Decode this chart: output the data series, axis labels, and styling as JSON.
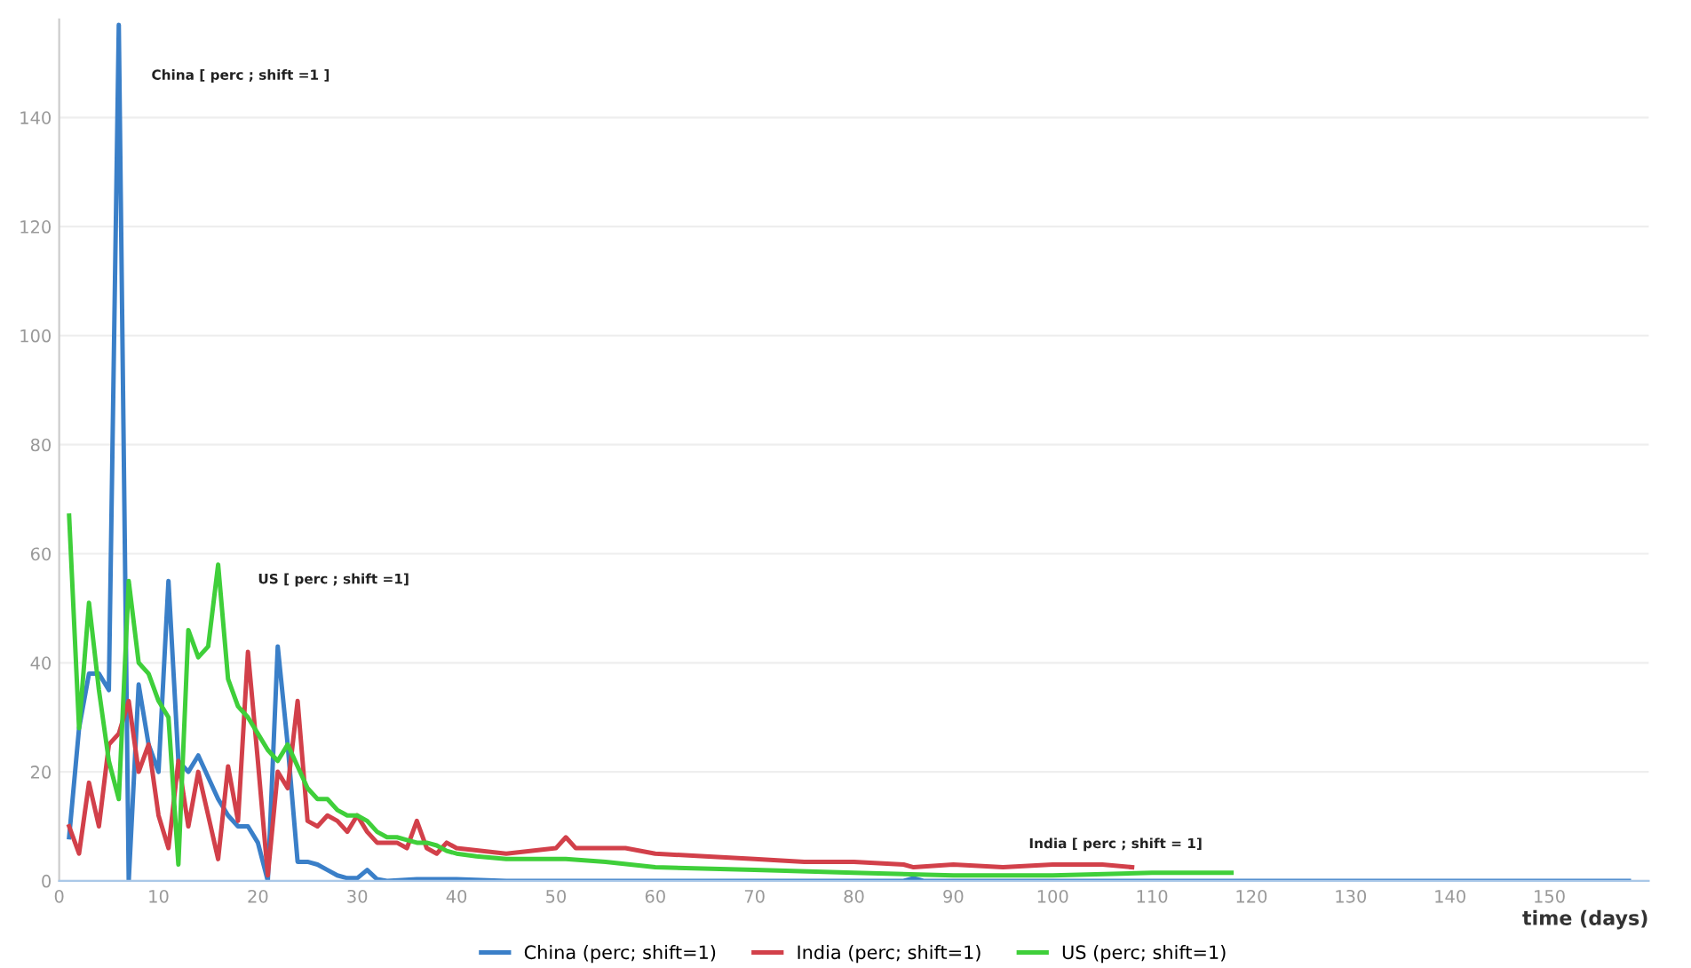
{
  "chart_data": {
    "type": "line",
    "xlabel": "time (days)",
    "xlim": [
      0,
      160
    ],
    "ylim": [
      0,
      158
    ],
    "xticks": [
      0,
      10,
      20,
      30,
      40,
      50,
      60,
      70,
      80,
      90,
      100,
      110,
      120,
      130,
      140,
      150
    ],
    "yticks": [
      0,
      20,
      40,
      60,
      80,
      100,
      120,
      140
    ],
    "grid": "y",
    "legend": "bottom",
    "marker": "none",
    "line_style": "solid",
    "annotations": [
      "China [ perc ; shift =1 ]",
      "US [ perc ; shift =1]",
      "India [ perc ; shift = 1]"
    ],
    "series": [
      {
        "name": "China (perc; shift=1)",
        "color": "#3a7fc8",
        "x": [
          1,
          2,
          3,
          4,
          5,
          6,
          7,
          8,
          9,
          10,
          11,
          12,
          13,
          14,
          15,
          16,
          17,
          18,
          19,
          20,
          21,
          22,
          23,
          24,
          25,
          26,
          27,
          28,
          29,
          30,
          31,
          32,
          33,
          36,
          40,
          45,
          60,
          85,
          86,
          87,
          100,
          158
        ],
        "values": [
          8,
          28,
          38,
          38,
          35,
          157,
          0,
          36,
          25,
          20,
          55,
          22,
          20,
          23,
          19,
          15,
          12,
          10,
          10,
          7,
          0,
          43,
          25,
          3.5,
          3.5,
          3,
          2,
          1,
          0.5,
          0.5,
          2,
          0.3,
          0,
          0.3,
          0.3,
          0,
          0,
          0,
          0.5,
          0,
          0,
          0
        ]
      },
      {
        "name": "India (perc; shift=1)",
        "color": "#d2404a",
        "x": [
          1,
          2,
          3,
          4,
          5,
          6,
          7,
          8,
          9,
          10,
          11,
          12,
          13,
          14,
          15,
          16,
          17,
          18,
          19,
          20,
          21,
          22,
          23,
          24,
          25,
          26,
          27,
          28,
          29,
          30,
          31,
          32,
          33,
          34,
          35,
          36,
          37,
          38,
          39,
          40,
          45,
          50,
          51,
          52,
          55,
          57,
          60,
          65,
          70,
          75,
          80,
          85,
          86,
          90,
          95,
          100,
          105,
          108
        ],
        "values": [
          10,
          5,
          18,
          10,
          25,
          27,
          33,
          20,
          25,
          12,
          6,
          22,
          10,
          20,
          12,
          4,
          21,
          11,
          42,
          22,
          1,
          20,
          17,
          33,
          11,
          10,
          12,
          11,
          9,
          12,
          9,
          7,
          7,
          7,
          6,
          11,
          6,
          5,
          7,
          6,
          5,
          6,
          8,
          6,
          6,
          6,
          5,
          4.5,
          4,
          3.5,
          3.5,
          3,
          2.5,
          3,
          2.5,
          3,
          3,
          2.5
        ]
      },
      {
        "name": "US (perc; shift=1)",
        "color": "#3fcf3a",
        "x": [
          1,
          2,
          3,
          4,
          5,
          6,
          7,
          8,
          9,
          10,
          11,
          12,
          13,
          14,
          15,
          16,
          17,
          18,
          19,
          20,
          21,
          22,
          23,
          24,
          25,
          26,
          27,
          28,
          29,
          30,
          31,
          32,
          33,
          34,
          35,
          36,
          37,
          38,
          39,
          40,
          42,
          45,
          50,
          51,
          55,
          60,
          70,
          80,
          90,
          100,
          110,
          118
        ],
        "values": [
          67,
          28,
          51,
          35,
          22,
          15,
          55,
          40,
          38,
          33,
          30,
          3,
          46,
          41,
          43,
          58,
          37,
          32,
          30,
          27,
          24,
          22,
          25,
          21,
          17,
          15,
          15,
          13,
          12,
          12,
          11,
          9,
          8,
          8,
          7.5,
          7,
          7,
          6.5,
          5.5,
          5,
          4.5,
          4,
          4,
          4,
          3.5,
          2.5,
          2,
          1.5,
          1,
          1,
          1.5,
          1.5
        ]
      }
    ]
  }
}
